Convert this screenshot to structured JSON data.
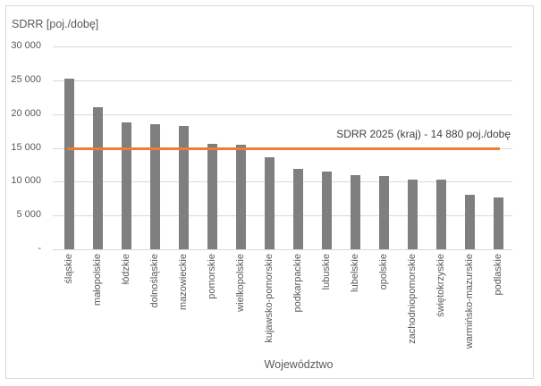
{
  "chart_data": {
    "type": "bar",
    "ylabel": "SDRR [poj./dobę]",
    "xlabel": "Województwo",
    "ylim": [
      0,
      30000
    ],
    "grid": true,
    "legend": "none",
    "ytick_values": [
      0,
      5000,
      10000,
      15000,
      20000,
      25000,
      30000
    ],
    "ytick_labels": [
      "-",
      "5 000",
      "10 000",
      "15 000",
      "20 000",
      "25 000",
      "30 000"
    ],
    "categories": [
      "śląskie",
      "małopolskie",
      "łódzkie",
      "dolnośląskie",
      "mazowieckie",
      "pomorskie",
      "wielkopolskie",
      "kujawsko-pomorskie",
      "podkarpackie",
      "lubuskie",
      "lubelskie",
      "opolskie",
      "zachodniopomorskie",
      "świętokrzyskie",
      "warmińsko-mazurskie",
      "podlaskie"
    ],
    "values": [
      25200,
      20950,
      18800,
      18450,
      18300,
      15550,
      15400,
      13600,
      11900,
      11450,
      11000,
      10800,
      10350,
      10250,
      8050,
      7650
    ],
    "bar_color": "#7f7f7f",
    "ref_line": {
      "value": 14880,
      "label": "SDRR 2025 (kraj) - 14 880 poj./dobę",
      "color": "#ed7d31"
    }
  },
  "colors": {
    "background": "#ffffff",
    "border": "#d9d9d9",
    "gridline": "#d9d9d9",
    "text": "#595959",
    "annotation_text": "#404040"
  }
}
